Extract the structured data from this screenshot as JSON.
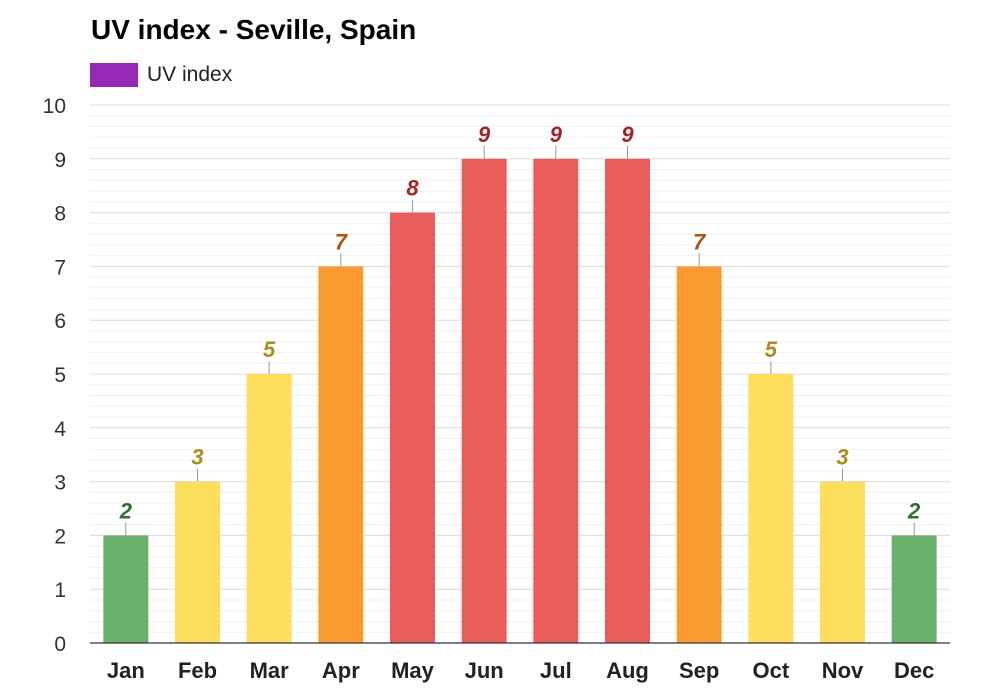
{
  "chart_data": {
    "type": "bar",
    "title": "UV index - Seville, Spain",
    "xlabel": "",
    "ylabel": "",
    "ylim": [
      0,
      10
    ],
    "yticks": [
      0,
      1,
      2,
      3,
      4,
      5,
      6,
      7,
      8,
      9,
      10
    ],
    "grid": true,
    "legend": "top-left",
    "categories": [
      "Jan",
      "Feb",
      "Mar",
      "Apr",
      "May",
      "Jun",
      "Jul",
      "Aug",
      "Sep",
      "Oct",
      "Nov",
      "Dec"
    ],
    "series": [
      {
        "name": "UV index",
        "color": "#9528b4",
        "values": [
          2,
          3,
          5,
          7,
          8,
          9,
          9,
          9,
          7,
          5,
          3,
          2
        ]
      }
    ],
    "data_labels": [
      "2",
      "3",
      "5",
      "7",
      "8",
      "9",
      "9",
      "9",
      "7",
      "5",
      "3",
      "2"
    ],
    "level_colors": {
      "low": {
        "bar": "#6ab26c",
        "label": "#2e7032"
      },
      "moderate": {
        "bar": "#fcdd5c",
        "label": "#a8901f"
      },
      "high": {
        "bar": "#fa9b32",
        "label": "#a8580e"
      },
      "very_high": {
        "bar": "#e95d5b",
        "label": "#a32626"
      }
    }
  }
}
